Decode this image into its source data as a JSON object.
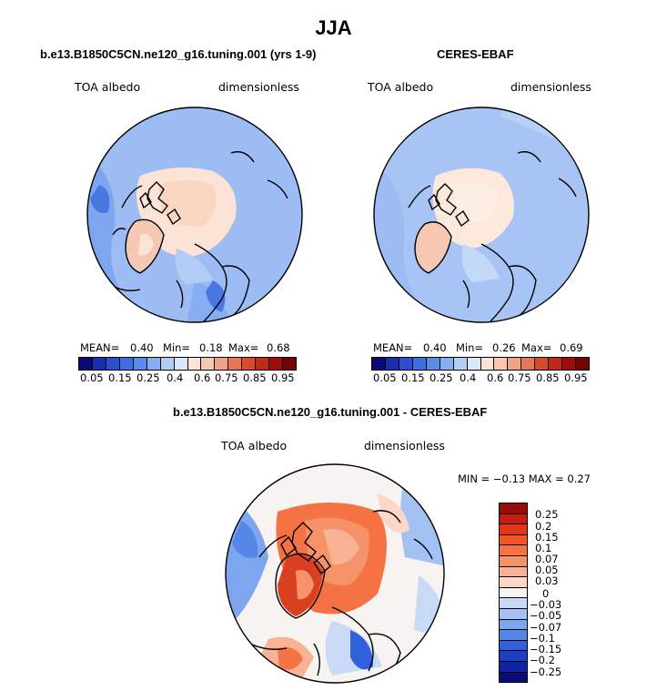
{
  "figure": {
    "title": "JJA"
  },
  "panel_left": {
    "title": "b.e13.B1850C5CN.ne120_g16.tuning.001 (yrs 1-9)",
    "var_label": "TOA albedo",
    "units": "dimensionless",
    "stats": {
      "mean_label": "MEAN=",
      "mean": "0.40",
      "min_label": "Min=",
      "min": "0.18",
      "max_label": "Max=",
      "max": "0.68"
    }
  },
  "panel_right": {
    "title": "CERES-EBAF",
    "var_label": "TOA albedo",
    "units": "dimensionless",
    "stats": {
      "mean_label": "MEAN=",
      "mean": "0.40",
      "min_label": "Min=",
      "min": "0.26",
      "max_label": "Max=",
      "max": "0.69"
    }
  },
  "panel_diff": {
    "title": "b.e13.B1850C5CN.ne120_g16.tuning.001 - CERES-EBAF",
    "var_label": "TOA albedo",
    "units": "dimensionless",
    "minmax": "MIN =  −0.13 MAX =    0.27"
  },
  "colorbar_top": {
    "labels": [
      "0.05",
      "0.15",
      "0.25",
      "0.4",
      "0.6",
      "0.75",
      "0.85",
      "0.95"
    ],
    "colors": [
      "#0a0a7a",
      "#1a2fae",
      "#2a4fd2",
      "#3d6ee4",
      "#5a8aec",
      "#86aef2",
      "#b2cdf6",
      "#dbe7fa",
      "#fbe4d6",
      "#f6c8b2",
      "#f0a487",
      "#e8775a",
      "#d84a30",
      "#c22818",
      "#9e0d0a",
      "#730404"
    ]
  },
  "colorbar_diff": {
    "labels": [
      "0.25",
      "0.2",
      "0.15",
      "0.1",
      "0.07",
      "0.05",
      "0.03",
      "0",
      "−0.03",
      "−0.05",
      "−0.07",
      "−0.1",
      "−0.15",
      "−0.2",
      "−0.25"
    ],
    "colors": [
      "#9a0a08",
      "#c81a0e",
      "#e43616",
      "#f25422",
      "#f47243",
      "#f59267",
      "#f8b294",
      "#fbd7c5",
      "#f5f3f0",
      "#c9daf5",
      "#a3c1f2",
      "#7ea6ee",
      "#5487e8",
      "#3060dc",
      "#1a3fc6",
      "#0f23a4",
      "#0a0a7a"
    ]
  },
  "map_colors": {
    "ocean_low": "#86aef2",
    "ocean_mid": "#a8c4f4",
    "land_ice": "#f8d6c2",
    "ice_light": "#fde6d8",
    "dark_blue": "#4a78e0",
    "diff_red": "#f07a4e",
    "diff_dark_red": "#d8401f",
    "diff_white": "#f6f3f0",
    "diff_blue": "#7ea6ee",
    "coast": "#000000"
  }
}
